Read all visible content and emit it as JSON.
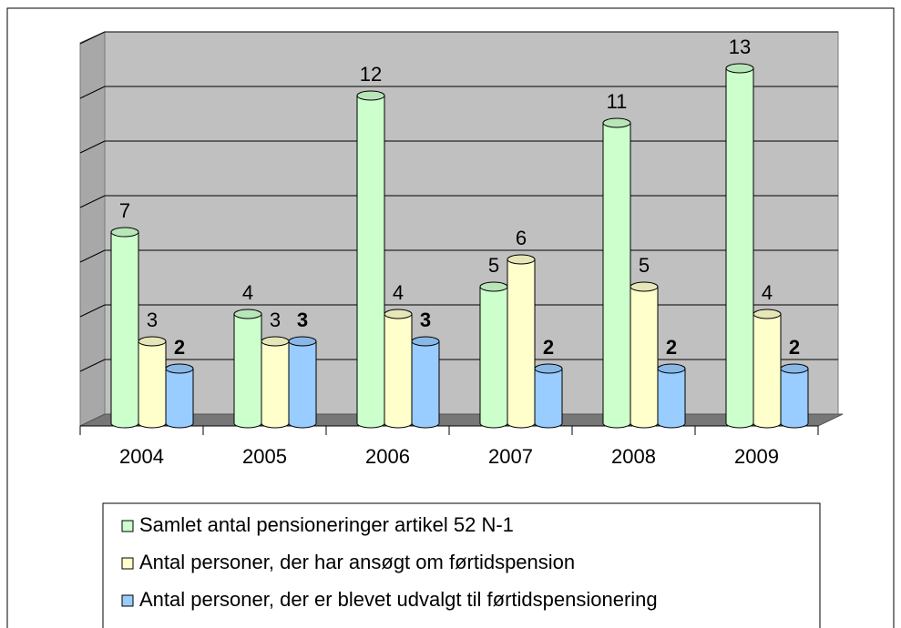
{
  "chart_data": {
    "type": "bar3d",
    "categories": [
      "2004",
      "2005",
      "2006",
      "2007",
      "2008",
      "2009"
    ],
    "series": [
      {
        "name": "Samlet antal pensioneringer artikel 52 N-1",
        "color": "#ccffcc",
        "values": [
          7,
          4,
          12,
          5,
          11,
          13
        ]
      },
      {
        "name": "Antal personer, der har ansøgt om førtidspension",
        "color": "#ffffcc",
        "values": [
          3,
          3,
          4,
          6,
          5,
          4
        ]
      },
      {
        "name": "Antal personer, der er blevet udvalgt til førtidspensionering",
        "color": "#99ccff",
        "values": [
          2,
          3,
          3,
          2,
          2,
          2
        ],
        "bold_labels": true
      }
    ],
    "ylim": [
      0,
      14
    ],
    "yticks": [
      0,
      2,
      4,
      6,
      8,
      10,
      12,
      14
    ],
    "grid": true,
    "legend": "bottom"
  }
}
